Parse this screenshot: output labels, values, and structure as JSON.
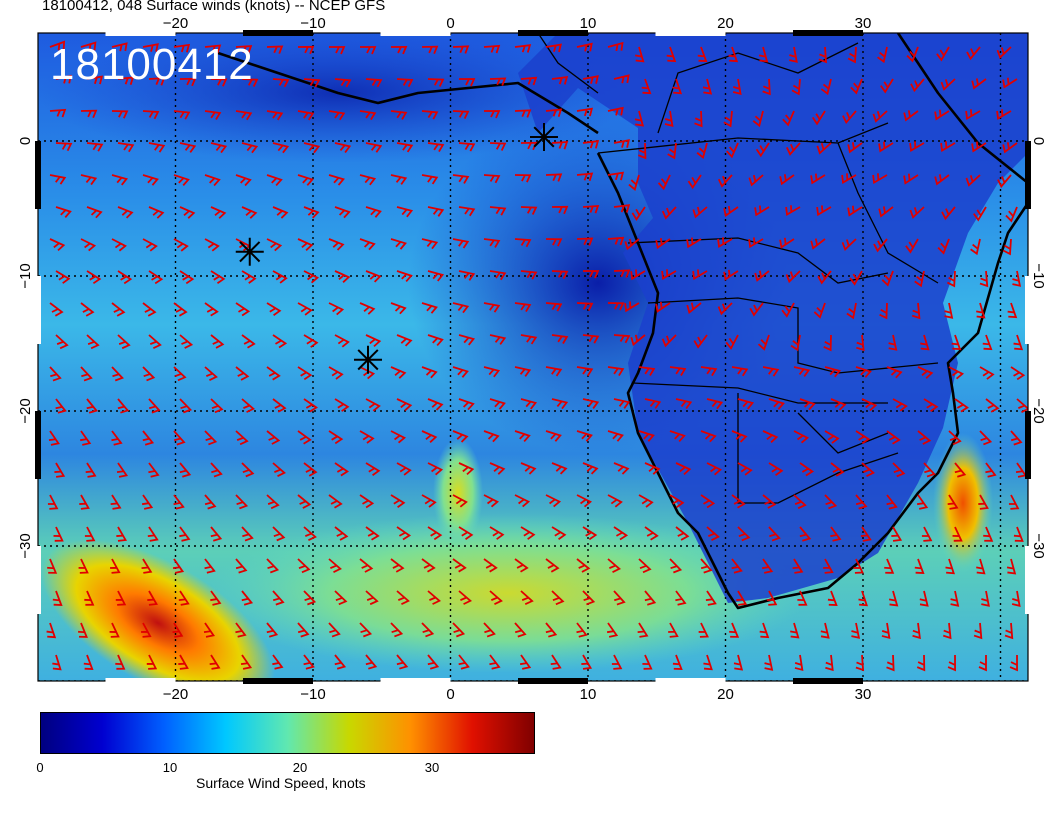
{
  "title": "18100412, 048 Surface winds (knots) -- NCEP GFS",
  "stamp": "18100412",
  "map": {
    "lon_range": [
      -30,
      42
    ],
    "lat_range": [
      -40,
      8
    ],
    "lon_ticks_top": [
      "−20",
      "−10",
      "0",
      "10",
      "20",
      "30"
    ],
    "lon_ticks_bottom": [
      "−20",
      "−10",
      "0",
      "10",
      "20",
      "30"
    ],
    "lat_ticks_left": [
      "0",
      "−10",
      "−20",
      "−30"
    ],
    "lat_ticks_right": [
      "0",
      "−10",
      "−20",
      "−30"
    ],
    "graticule": "dotted",
    "barb_color": "#e00000",
    "markers": [
      {
        "name": "asterisk",
        "lon": 6.8,
        "lat": 0.3
      },
      {
        "name": "asterisk",
        "lon": -14.6,
        "lat": -8.2
      },
      {
        "name": "asterisk",
        "lon": -6.0,
        "lat": -16.2
      }
    ]
  },
  "colorbar": {
    "label": "Surface Wind Speed, knots",
    "ticks": [
      "0",
      "10",
      "20",
      "30"
    ],
    "range": [
      0,
      38
    ],
    "colors": [
      "#000080",
      "#0000d0",
      "#0060ff",
      "#00c8ff",
      "#60e8b0",
      "#c8d800",
      "#ff9000",
      "#e01000",
      "#800000"
    ]
  }
}
